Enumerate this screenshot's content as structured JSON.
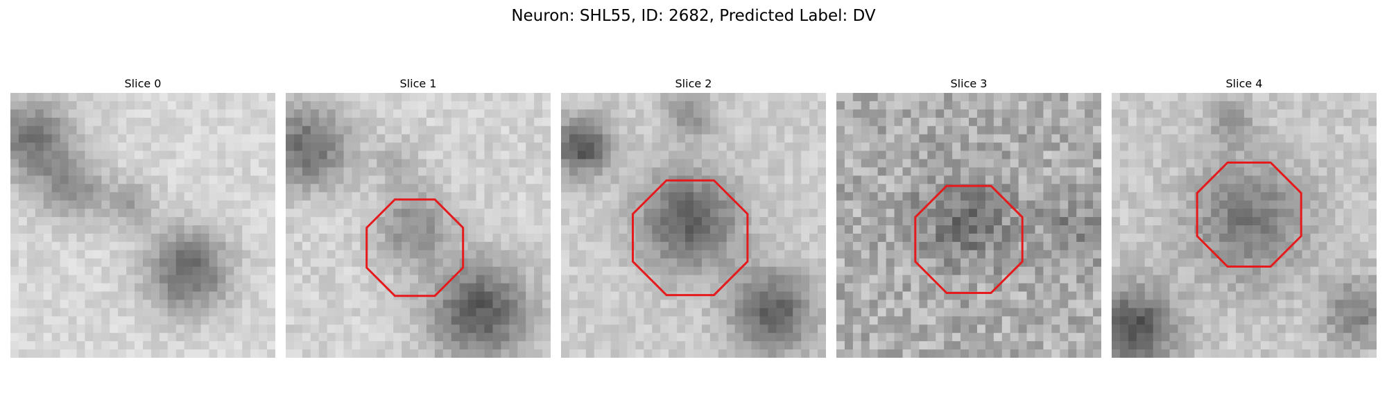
{
  "figure": {
    "title": "Neuron: SHL55, ID: 2682, Predicted Label: DV"
  },
  "colors": {
    "roi": "#e41a1c",
    "background": "#ffffff",
    "colormap": "gray"
  },
  "panels": [
    {
      "title": "Slice 0",
      "roi_outline": false,
      "image": "grayscale-noise-slice-0"
    },
    {
      "title": "Slice 1",
      "roi_outline": true,
      "image": "grayscale-noise-slice-1"
    },
    {
      "title": "Slice 2",
      "roi_outline": true,
      "image": "grayscale-noise-slice-2"
    },
    {
      "title": "Slice 3",
      "roi_outline": true,
      "image": "grayscale-noise-slice-3"
    },
    {
      "title": "Slice 4",
      "roi_outline": true,
      "image": "grayscale-noise-slice-4"
    }
  ]
}
